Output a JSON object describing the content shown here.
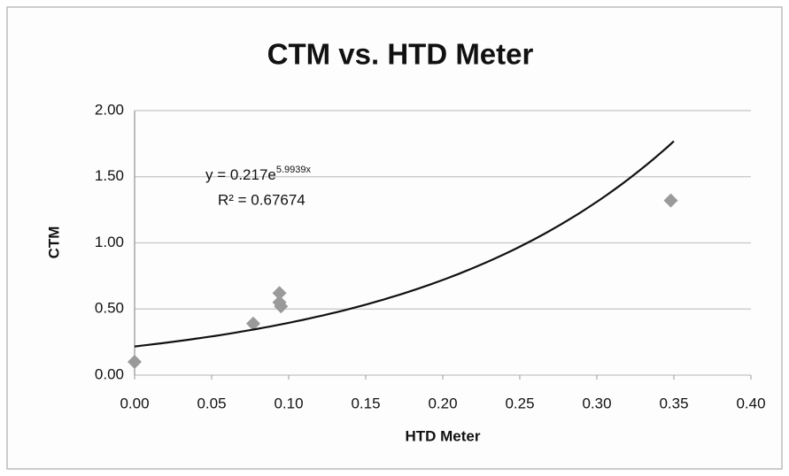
{
  "chart_data": {
    "type": "scatter",
    "title": "CTM vs. HTD Meter",
    "xlabel": "HTD Meter",
    "ylabel": "CTM",
    "series": [
      {
        "name": "CTM",
        "color": "#9a9a9a",
        "x": [
          0.0,
          0.077,
          0.094,
          0.094,
          0.095,
          0.348
        ],
        "values": [
          0.1,
          0.39,
          0.62,
          0.55,
          0.52,
          1.32
        ]
      }
    ],
    "trendline": {
      "type": "exponential",
      "a": 0.217,
      "b": 5.9939,
      "x": [
        0.0,
        0.35
      ],
      "color": "#111111",
      "label": "y = 0.217e",
      "label_exponent": "5.9939x",
      "r2_label": "R² = 0.67674"
    },
    "xlim": [
      0,
      0.4
    ],
    "xticks": [
      {
        "value": 0,
        "label": "0.00"
      },
      {
        "value": 0.05,
        "label": "0.05"
      },
      {
        "value": 0.1,
        "label": "0.10"
      },
      {
        "value": 0.15,
        "label": "0.15"
      },
      {
        "value": 0.2,
        "label": "0.20"
      },
      {
        "value": 0.25,
        "label": "0.25"
      },
      {
        "value": 0.3,
        "label": "0.30"
      },
      {
        "value": 0.35,
        "label": "0.35"
      },
      {
        "value": 0.4,
        "label": "0.40"
      }
    ],
    "ylim": [
      0,
      2
    ],
    "yticks": [
      {
        "value": 0,
        "label": "0.00"
      },
      {
        "value": 0.5,
        "label": "0.50"
      },
      {
        "value": 1,
        "label": "1.00"
      },
      {
        "value": 1.5,
        "label": "1.50"
      },
      {
        "value": 2,
        "label": "2.00"
      }
    ],
    "grid": true
  }
}
